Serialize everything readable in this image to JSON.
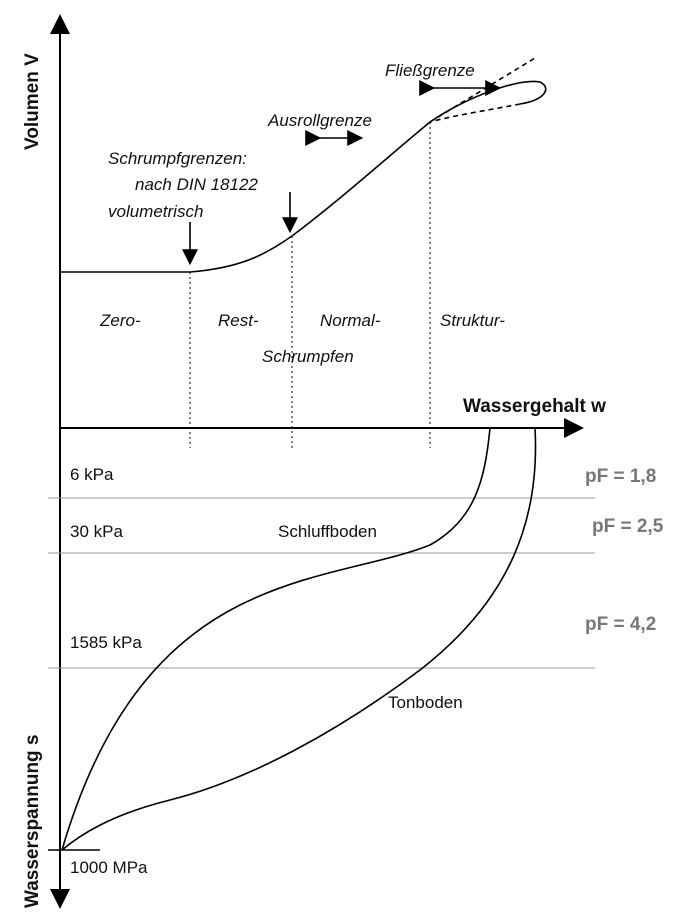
{
  "axes": {
    "y_top": "Volumen V",
    "x": "Wassergehalt w",
    "y_bottom": "Wasserspannung s"
  },
  "limits": {
    "fliess": "Fließgrenze",
    "ausroll": "Ausrollgrenze",
    "schrumpf": [
      "Schrumpfgrenzen:",
      "nach DIN 18122",
      "volumetrisch"
    ]
  },
  "phases": [
    "Zero-",
    "Rest-",
    "Normal-",
    "Struktur-"
  ],
  "phase_suffix": "Schrumpfen",
  "suction_levels": [
    {
      "label": "6 kPa",
      "pf": "pF = 1,8"
    },
    {
      "label": "30 kPa",
      "pf": "pF = 2,5"
    },
    {
      "label": "1585 kPa",
      "pf": "pF = 4,2"
    },
    {
      "label": "1000 MPa"
    }
  ],
  "soils": [
    "Schluffboden",
    "Tonboden"
  ]
}
